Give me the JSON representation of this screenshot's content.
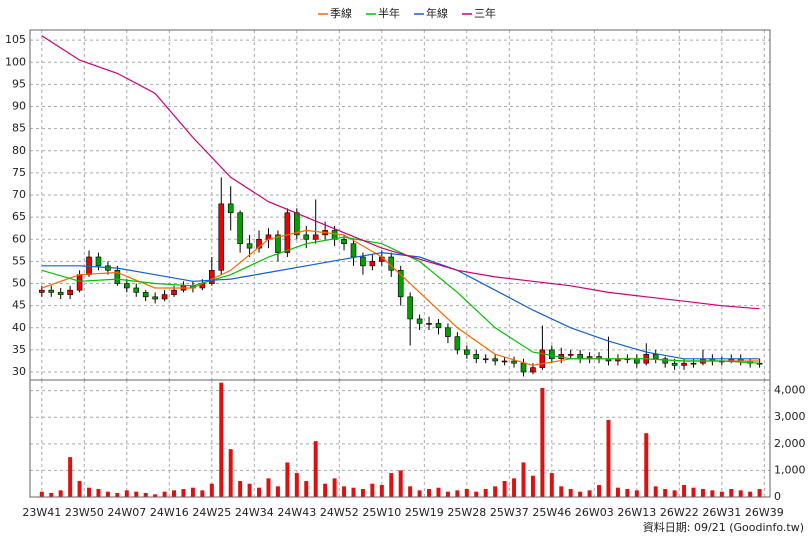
{
  "chart_data": [
    {
      "type": "candlestick",
      "x": [
        0,
        2,
        4,
        6,
        8,
        10,
        12,
        14,
        16,
        18,
        20,
        22,
        24,
        26,
        28,
        30,
        32,
        34,
        36,
        38,
        40,
        42,
        44,
        46,
        48,
        50,
        52,
        54,
        56,
        58,
        60,
        62,
        64,
        66,
        68,
        70,
        72,
        74,
        76,
        78,
        80,
        82,
        84,
        86,
        88,
        90,
        92,
        94,
        96,
        98,
        100,
        102,
        104,
        106,
        108,
        110,
        112,
        114,
        116,
        118,
        120,
        122,
        124,
        126,
        128,
        130,
        132,
        134,
        136,
        138,
        140,
        142,
        144,
        146,
        148,
        150,
        152
      ],
      "open": [
        48,
        48.5,
        48,
        47.5,
        48.5,
        52,
        56,
        54,
        53,
        50,
        49,
        48,
        47,
        46.5,
        47.5,
        48.5,
        49.5,
        49,
        50,
        53,
        68,
        66,
        59,
        58,
        60,
        61,
        57,
        66,
        61,
        60,
        61,
        62,
        60,
        59,
        56,
        54,
        55,
        56,
        53,
        47,
        42,
        41,
        41,
        40,
        38,
        35,
        34,
        33,
        33,
        32.5,
        32.5,
        32,
        30,
        31,
        35,
        33,
        34,
        34,
        33,
        33.5,
        33,
        32.5,
        33,
        33,
        32,
        34,
        33,
        32,
        31.5,
        32,
        32,
        33,
        32.5,
        32.5,
        33,
        32.5,
        32
      ],
      "high": [
        49.5,
        49.5,
        49,
        49.5,
        53,
        57.5,
        57,
        55,
        54,
        51,
        50,
        48.5,
        48,
        48.5,
        49.5,
        50.5,
        50.5,
        51,
        56,
        74,
        72,
        66.5,
        61,
        62,
        62.5,
        62,
        67,
        67,
        63,
        69,
        64,
        63,
        61,
        60,
        57,
        56.5,
        57.5,
        57,
        54,
        48,
        43,
        42.5,
        42,
        41,
        39,
        36,
        35,
        34,
        34,
        33.5,
        33.5,
        33,
        32,
        40.5,
        36,
        35.5,
        35,
        35,
        34.5,
        34.5,
        38,
        34,
        34,
        34,
        36.5,
        35,
        33.5,
        33,
        33,
        33,
        35,
        34,
        33.5,
        34,
        34,
        33,
        33
      ],
      "low": [
        47,
        47,
        46.5,
        46.5,
        48,
        51.5,
        53,
        52,
        49.5,
        48,
        47,
        46,
        45.5,
        46,
        47,
        48,
        48,
        48.5,
        49.5,
        52,
        62,
        57,
        56,
        57,
        58,
        55,
        56,
        60,
        58,
        59,
        60,
        58.5,
        57.5,
        54,
        52,
        53,
        54,
        51.5,
        45,
        36,
        39.5,
        39.5,
        38.5,
        36.5,
        34,
        33,
        32,
        32,
        31.5,
        31.5,
        31,
        29,
        29.5,
        30.5,
        32,
        32,
        33,
        32,
        32,
        32,
        31.5,
        31.5,
        32,
        31,
        31.5,
        32,
        31,
        30.5,
        30.5,
        31,
        31.5,
        31.5,
        31.5,
        32,
        31.5,
        31,
        31
      ],
      "close": [
        48.5,
        48,
        47.5,
        48.5,
        52,
        56,
        54,
        53,
        50,
        49,
        48,
        47,
        46.5,
        47.5,
        48.5,
        49.5,
        49,
        50,
        53,
        68,
        66,
        59,
        58,
        60,
        61,
        57,
        66,
        61,
        60,
        61,
        62,
        60,
        59,
        56,
        54,
        55,
        56,
        53,
        47,
        42,
        41,
        41,
        40,
        38,
        35,
        34,
        33,
        33,
        32.5,
        32.5,
        32,
        30,
        31,
        35,
        33,
        34,
        34,
        33,
        33.5,
        33,
        32.5,
        33,
        33,
        32,
        34,
        33,
        32,
        31.5,
        32,
        32,
        33,
        32.5,
        32.5,
        33,
        32.5,
        32,
        32
      ],
      "up_color": "#ee0000",
      "down_color": "#00a000",
      "series": [
        {
          "name": "季線",
          "color": "#ff6600",
          "x": [
            0,
            8,
            16,
            24,
            32,
            40,
            48,
            56,
            64,
            72,
            80,
            88,
            96,
            104,
            112,
            120,
            128,
            136,
            144,
            152
          ],
          "values": [
            49,
            52,
            52.5,
            49,
            49,
            53,
            60,
            62,
            61,
            56,
            48,
            40,
            34,
            31.5,
            33,
            33,
            33,
            32.5,
            32.5,
            32.5
          ]
        },
        {
          "name": "半年",
          "color": "#00c000",
          "x": [
            0,
            8,
            16,
            24,
            32,
            40,
            48,
            56,
            64,
            72,
            80,
            88,
            96,
            104,
            112,
            120,
            128,
            136,
            144,
            152
          ],
          "values": [
            53,
            50.5,
            51,
            50,
            49.5,
            52,
            56,
            59,
            60.5,
            59,
            55,
            48,
            40,
            34.5,
            33,
            33,
            33,
            32.5,
            32.5,
            32
          ]
        },
        {
          "name": "年線",
          "color": "#1060d0",
          "x": [
            0,
            8,
            16,
            24,
            32,
            40,
            48,
            56,
            64,
            72,
            80,
            88,
            96,
            104,
            112,
            120,
            128,
            136,
            144,
            152
          ],
          "values": [
            54,
            54,
            53.5,
            52,
            50.5,
            51,
            52.5,
            54,
            55.5,
            57,
            56,
            53,
            48.5,
            44,
            40,
            37,
            34.5,
            33,
            33,
            33
          ]
        },
        {
          "name": "三年",
          "color": "#cc0077",
          "x": [
            0,
            8,
            16,
            24,
            32,
            40,
            48,
            56,
            64,
            72,
            80,
            88,
            96,
            104,
            112,
            120,
            128,
            136,
            144,
            152
          ],
          "values": [
            106,
            100.5,
            97.5,
            93,
            83,
            74,
            68.5,
            65,
            61.5,
            58,
            55.5,
            53,
            51.5,
            50.5,
            49.5,
            48,
            47,
            46,
            45,
            44.3
          ]
        }
      ],
      "xlim": [
        -2.5,
        154.2
      ],
      "ylim": [
        28.2,
        107.3
      ],
      "yticks": [
        30,
        35,
        40,
        45,
        50,
        55,
        60,
        65,
        70,
        75,
        80,
        85,
        90,
        95,
        100,
        105
      ],
      "grid": true
    },
    {
      "type": "bar",
      "x": [
        0,
        2,
        4,
        6,
        8,
        10,
        12,
        14,
        16,
        18,
        20,
        22,
        24,
        26,
        28,
        30,
        32,
        34,
        36,
        38,
        40,
        42,
        44,
        46,
        48,
        50,
        52,
        54,
        56,
        58,
        60,
        62,
        64,
        66,
        68,
        70,
        72,
        74,
        76,
        78,
        80,
        82,
        84,
        86,
        88,
        90,
        92,
        94,
        96,
        98,
        100,
        102,
        104,
        106,
        108,
        110,
        112,
        114,
        116,
        118,
        120,
        122,
        124,
        126,
        128,
        130,
        132,
        134,
        136,
        138,
        140,
        142,
        144,
        146,
        148,
        150,
        152
      ],
      "values": [
        200,
        150,
        250,
        1500,
        600,
        350,
        300,
        200,
        150,
        250,
        200,
        150,
        100,
        200,
        250,
        300,
        350,
        250,
        500,
        4300,
        1800,
        600,
        500,
        350,
        700,
        400,
        1300,
        900,
        600,
        2100,
        500,
        700,
        400,
        350,
        300,
        500,
        450,
        900,
        1000,
        400,
        250,
        300,
        350,
        200,
        250,
        300,
        200,
        300,
        400,
        600,
        700,
        1300,
        800,
        4100,
        900,
        400,
        300,
        200,
        250,
        450,
        2900,
        350,
        300,
        250,
        2400,
        400,
        300,
        250,
        450,
        350,
        300,
        250,
        200,
        300,
        250,
        200,
        300
      ],
      "color": "#dd1111",
      "xlim": [
        -2.5,
        154.2
      ],
      "xticks": [
        {
          "value": 0,
          "label": "23W41"
        },
        {
          "value": 9,
          "label": "23W50"
        },
        {
          "value": 18,
          "label": "24W07"
        },
        {
          "value": 27,
          "label": "24W16"
        },
        {
          "value": 36,
          "label": "24W25"
        },
        {
          "value": 45,
          "label": "24W34"
        },
        {
          "value": 54,
          "label": "24W43"
        },
        {
          "value": 63,
          "label": "24W52"
        },
        {
          "value": 72,
          "label": "25W10"
        },
        {
          "value": 81,
          "label": "25W19"
        },
        {
          "value": 90,
          "label": "25W28"
        },
        {
          "value": 99,
          "label": "25W37"
        },
        {
          "value": 108,
          "label": "25W46"
        },
        {
          "value": 117,
          "label": "26W03"
        },
        {
          "value": 126,
          "label": "26W13"
        },
        {
          "value": 135,
          "label": "26W22"
        },
        {
          "value": 144,
          "label": "26W31"
        },
        {
          "value": 153,
          "label": "26W39"
        }
      ],
      "ylim": [
        0,
        4400
      ],
      "yticks": [
        0,
        {
          "value": 1000,
          "label": "1,000"
        },
        {
          "value": 2000,
          "label": "2,000"
        },
        {
          "value": 3000,
          "label": "3,000"
        },
        {
          "value": 4000,
          "label": "4,000"
        }
      ],
      "grid": true
    }
  ],
  "footer": "資料日期: 09/21  (Goodinfo.tw)"
}
